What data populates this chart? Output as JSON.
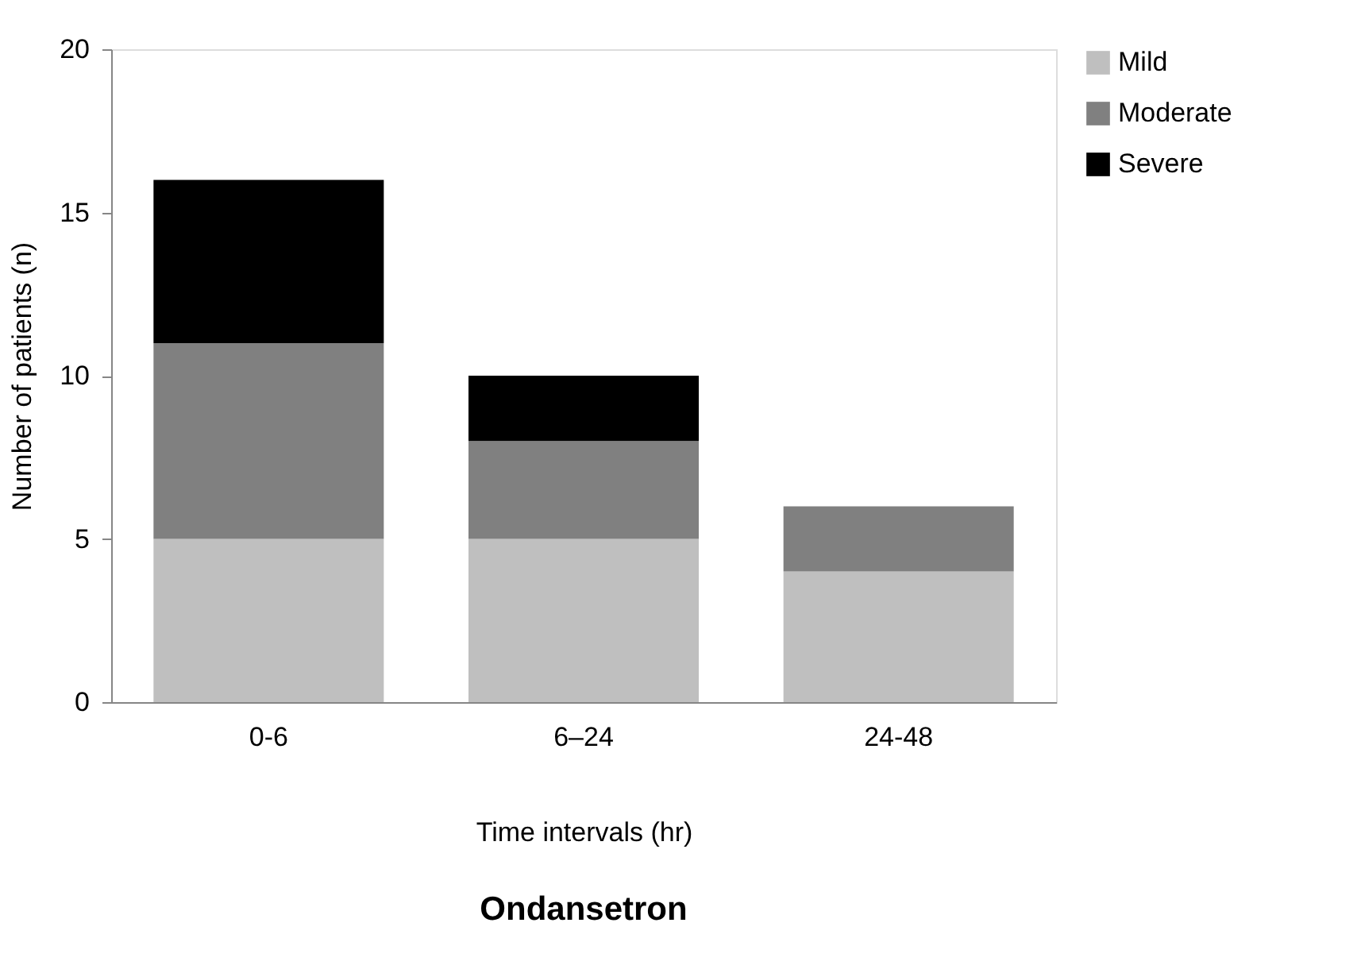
{
  "chart_data": {
    "type": "bar",
    "stacked": true,
    "title": "Ondansetron",
    "xlabel": "Time intervals (hr)",
    "ylabel": "Number of patients (n)",
    "categories": [
      "0-6",
      "6–24",
      "24-48"
    ],
    "series": [
      {
        "name": "Mild",
        "color": "#bfbfbf",
        "values": [
          5,
          5,
          4
        ]
      },
      {
        "name": "Moderate",
        "color": "#808080",
        "values": [
          6,
          3,
          2
        ]
      },
      {
        "name": "Severe",
        "color": "#000000",
        "values": [
          5,
          2,
          0
        ]
      }
    ],
    "ylim": [
      0,
      20
    ],
    "yticks": [
      0,
      5,
      10,
      15,
      20
    ],
    "grid": false,
    "legend": "right"
  }
}
